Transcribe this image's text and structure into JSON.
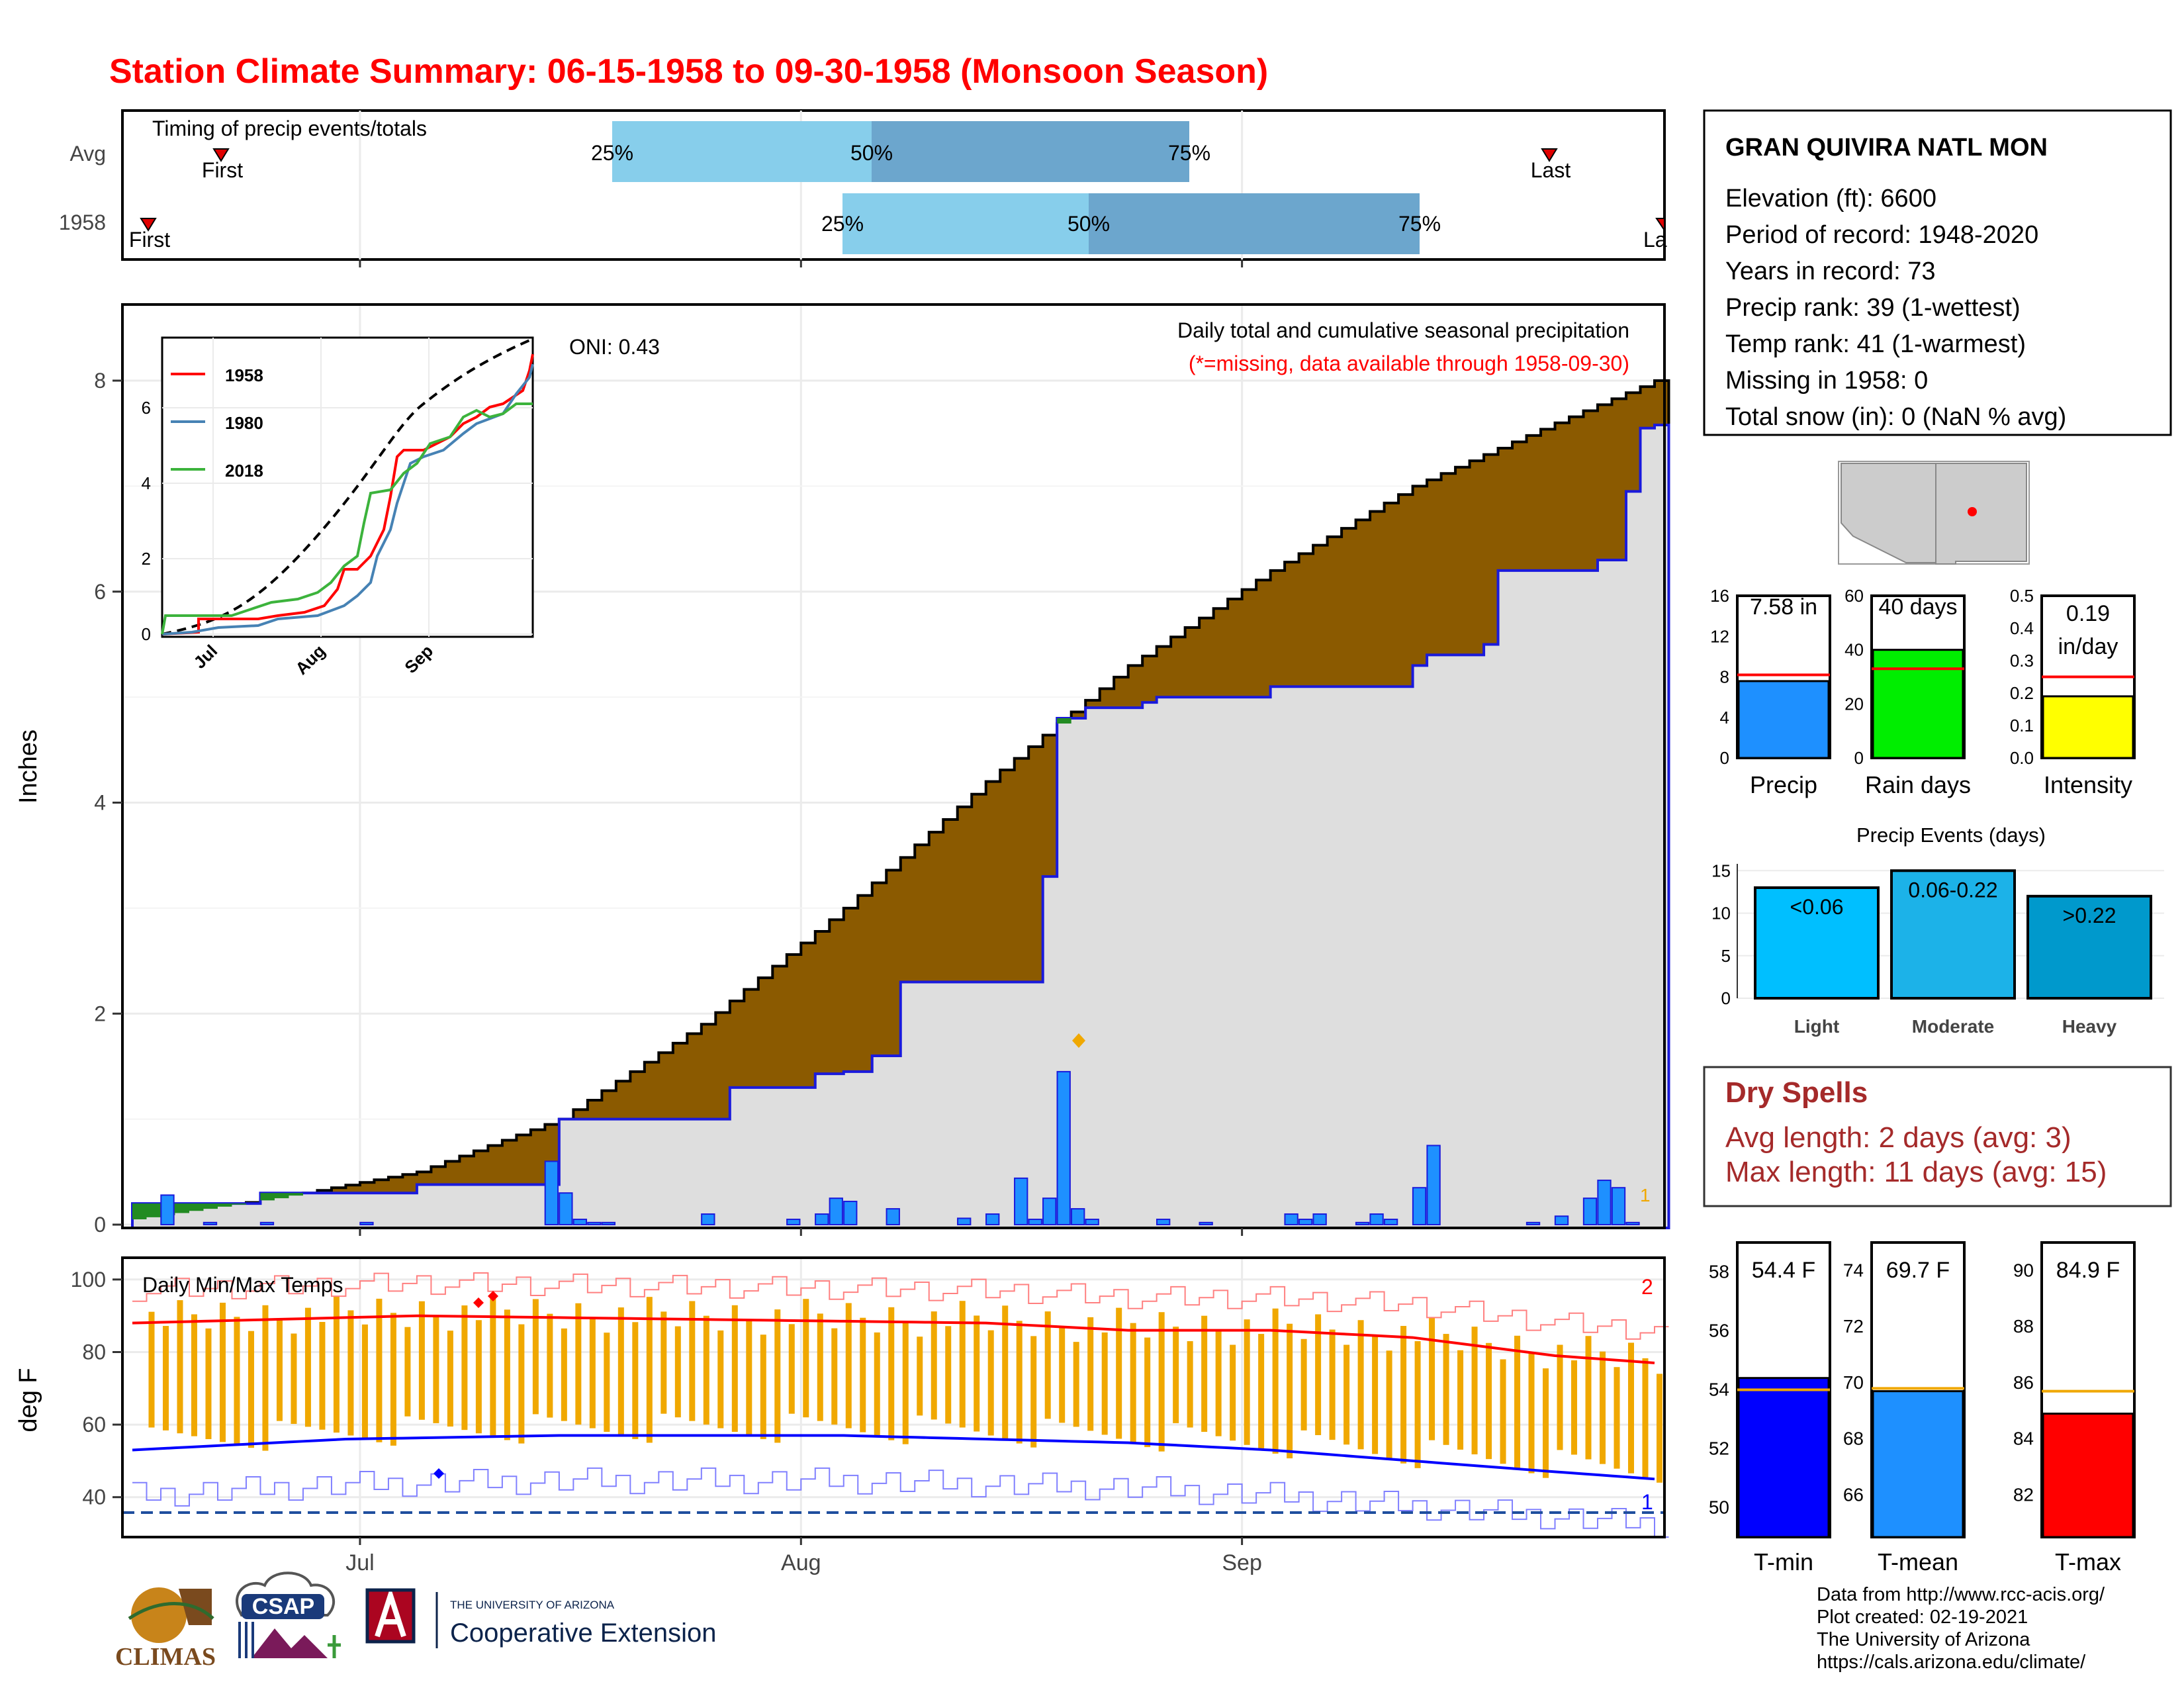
{
  "title": "Station Climate Summary: 06-15-1958 to 09-30-1958 (Monsoon Season)",
  "colors": {
    "title": "#ff0000",
    "cum_fill": "#8b5a00",
    "cum_area": "#dedede",
    "daily_bar": "#1e90ff",
    "light": "#00bfff",
    "moderate": "#1cb2e8",
    "heavy": "#0099cc",
    "dry_spells": "#a52a2a",
    "tmin": "#0000ff",
    "tmean": "#1e90ff",
    "tmax": "#ff0000",
    "temp_bar": "#f0a800",
    "pct_light": "#87ceeb",
    "pct_dark": "#6ca6cd",
    "green": "#228b22"
  },
  "timing_panel": {
    "label": "Timing of precip events/totals",
    "rows": [
      {
        "name": "Avg",
        "first_label": "First",
        "last_label": "Last",
        "p25": "25%",
        "p50": "50%",
        "p75": "75%"
      },
      {
        "name": "1958",
        "first_label": "First",
        "last_label": "La",
        "p25": "25%",
        "p50": "50%",
        "p75": "75%"
      }
    ]
  },
  "precip_panel": {
    "ylabel": "Inches",
    "oni": "ONI: 0.43",
    "caption": "Daily total and cumulative seasonal precipitation",
    "note": "(*=missing, data available through 1958-09-30)",
    "yticks": [
      "0",
      "2",
      "4",
      "6",
      "8"
    ],
    "xticks": [
      "Jul",
      "Aug",
      "Sep"
    ],
    "edge_marker": "1"
  },
  "inset": {
    "legend": [
      "1958",
      "1980",
      "2018"
    ],
    "yticks": [
      "0",
      "2",
      "4",
      "6"
    ],
    "xticks": [
      "Jul",
      "Aug",
      "Sep"
    ]
  },
  "temp_panel": {
    "ylabel": "deg F",
    "label": "Daily Min/Max Temps",
    "yticks": [
      "40",
      "60",
      "80",
      "100"
    ],
    "xticks": [
      "Jul",
      "Aug",
      "Sep"
    ],
    "count_max": "2",
    "count_min": "1"
  },
  "station": {
    "name": "GRAN QUIVIRA NATL MON",
    "lines": [
      "Elevation (ft): 6600",
      "Period of record: 1948-2020",
      "Years in record: 73",
      "Precip rank: 39 (1-wettest)",
      "Temp rank: 41 (1-warmest)",
      "Missing in 1958: 0",
      "Total snow (in): 0 (NaN % avg)"
    ]
  },
  "summary_bars": [
    {
      "label": "Precip",
      "value_text": "7.58 in",
      "value": 7.58,
      "avg": 8.2,
      "yticks": [
        "0",
        "4",
        "8",
        "12",
        "16"
      ],
      "ymax": 16
    },
    {
      "label": "Rain days",
      "value_text": "40 days",
      "value": 40,
      "avg": 33,
      "yticks": [
        "0",
        "20",
        "40",
        "60"
      ],
      "ymax": 60
    },
    {
      "label": "Intensity",
      "value_text": "0.19",
      "value_text2": "in/day",
      "value": 0.19,
      "avg": 0.25,
      "yticks": [
        "0.0",
        "0.1",
        "0.2",
        "0.3",
        "0.4",
        "0.5"
      ],
      "ymax": 0.5
    }
  ],
  "events": {
    "title": "Precip Events (days)",
    "yticks": [
      "0",
      "5",
      "10",
      "15"
    ],
    "bars": [
      {
        "label": "Light",
        "range": "<0.06",
        "value": 13
      },
      {
        "label": "Moderate",
        "range": "0.06-0.22",
        "value": 15
      },
      {
        "label": "Heavy",
        "range": ">0.22",
        "value": 12
      }
    ]
  },
  "dry_spells": {
    "title": "Dry Spells",
    "avg_line": "Avg length: 2 days (avg: 3)",
    "max_line": "Max length: 11 days (avg: 15)"
  },
  "temp_bars": [
    {
      "label": "T-min",
      "value_text": "54.4 F",
      "value": 54.4,
      "avg": 54.0,
      "yticks": [
        "50",
        "52",
        "54",
        "56",
        "58"
      ],
      "ymin": 49,
      "ymax": 59
    },
    {
      "label": "T-mean",
      "value_text": "69.7 F",
      "value": 69.7,
      "avg": 69.8,
      "yticks": [
        "66",
        "68",
        "70",
        "72",
        "74"
      ],
      "ymin": 64.5,
      "ymax": 75
    },
    {
      "label": "T-max",
      "value_text": "84.9 F",
      "value": 84.9,
      "avg": 85.7,
      "yticks": [
        "82",
        "84",
        "86",
        "88",
        "90"
      ],
      "ymin": 80.5,
      "ymax": 91
    }
  ],
  "logos": {
    "climas": "CLIMAS",
    "csap": "CSAP",
    "ua_small": "THE UNIVERSITY OF ARIZONA",
    "ua_big": "Cooperative Extension"
  },
  "footer": [
    "Data from http://www.rcc-acis.org/",
    "Plot created: 02-19-2021",
    "The University of Arizona",
    "https://cals.arizona.edu/climate/"
  ],
  "chart_data": [
    {
      "type": "area",
      "title": "Daily total and cumulative seasonal precipitation",
      "ylabel": "Inches",
      "ylim": [
        0,
        8.7
      ],
      "x_start": "1958-06-15",
      "x_end": "1958-09-30",
      "series": [
        {
          "name": "avg cumulative",
          "x": [
            0,
            10,
            20,
            30,
            40,
            50,
            60,
            70,
            80,
            90,
            100,
            107
          ],
          "values": [
            0.05,
            0.25,
            0.5,
            1.0,
            1.9,
            3.0,
            4.2,
            5.3,
            6.2,
            7.0,
            7.6,
            8.0
          ]
        },
        {
          "name": "1958 cumulative",
          "x": [
            0,
            9,
            14,
            20,
            29,
            30,
            42,
            48,
            50,
            52,
            54,
            64,
            65,
            67,
            71,
            72,
            73,
            80,
            90,
            91,
            95,
            96,
            97,
            103,
            105,
            106,
            107
          ],
          "values": [
            0.2,
            0.3,
            0.3,
            0.38,
            0.38,
            1.0,
            1.3,
            1.43,
            1.45,
            1.6,
            2.3,
            3.3,
            4.8,
            4.9,
            4.95,
            5.0,
            5.0,
            5.1,
            5.3,
            5.4,
            5.5,
            6.2,
            6.2,
            6.3,
            6.95,
            7.55,
            7.58
          ]
        }
      ],
      "daily": {
        "x": [
          2,
          5,
          9,
          16,
          29,
          30,
          31,
          32,
          33,
          40,
          46,
          48,
          49,
          50,
          53,
          58,
          60,
          62,
          63,
          64,
          65,
          66,
          67,
          72,
          75,
          81,
          82,
          83,
          86,
          87,
          88,
          90,
          91,
          98,
          100,
          102,
          103,
          104,
          105
        ],
        "values": [
          0.28,
          0.02,
          0.02,
          0.02,
          0.6,
          0.3,
          0.05,
          0.02,
          0.02,
          0.1,
          0.05,
          0.1,
          0.25,
          0.22,
          0.15,
          0.06,
          0.1,
          0.44,
          0.05,
          0.25,
          1.45,
          0.15,
          0.05,
          0.05,
          0.02,
          0.1,
          0.05,
          0.1,
          0.02,
          0.1,
          0.05,
          0.35,
          0.75,
          0.02,
          0.08,
          0.25,
          0.42,
          0.35,
          0.02
        ]
      }
    },
    {
      "type": "line",
      "title": "Daily Min/Max Temps",
      "ylabel": "deg F",
      "ylim": [
        29,
        106
      ],
      "x_start": "1958-06-15",
      "x_end": "1958-09-30",
      "series": [
        {
          "name": "avg max",
          "x": [
            0,
            20,
            40,
            60,
            70,
            80,
            90,
            100,
            107
          ],
          "values": [
            88,
            90,
            89,
            88,
            86,
            86,
            84,
            79,
            77
          ]
        },
        {
          "name": "avg min",
          "x": [
            0,
            15,
            30,
            50,
            70,
            80,
            90,
            100,
            107
          ],
          "values": [
            53,
            56,
            57,
            57,
            55,
            53,
            50,
            47,
            45
          ]
        }
      ]
    }
  ]
}
